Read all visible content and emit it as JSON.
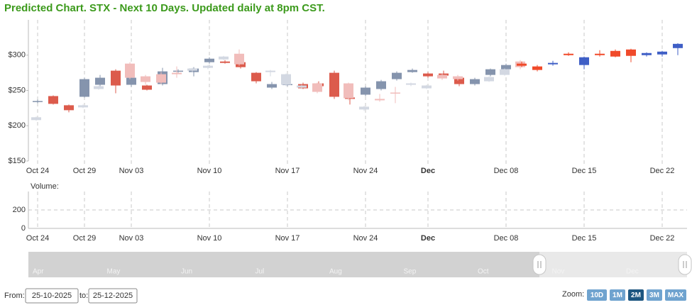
{
  "chart_data": {
    "type": "candlestick",
    "title": "Predicted Chart. STX - Next 10 Days. Updated daily at 8pm CST.",
    "categories": [
      "Oct 24",
      null,
      null,
      "Oct 29",
      null,
      null,
      "Nov 03",
      null,
      null,
      null,
      null,
      "Nov 10",
      null,
      null,
      null,
      null,
      "Nov 17",
      null,
      null,
      null,
      null,
      "Nov 24",
      null,
      null,
      null,
      "Dec",
      null,
      null,
      null,
      null,
      "Dec 08",
      null,
      null,
      null,
      null,
      "Dec 15",
      null,
      null,
      null,
      null,
      "Dec 22",
      null
    ],
    "bold_category": "Dec",
    "ylim": [
      150,
      350
    ],
    "yticks": [
      {
        "value": 150,
        "label": "$150"
      },
      {
        "value": 200,
        "label": "$200"
      },
      {
        "value": 250,
        "label": "$250"
      },
      {
        "value": 300,
        "label": "$300"
      }
    ],
    "grid": true,
    "series": [
      {
        "up_color": "#8594ad",
        "down_color": "#dc5b4c",
        "open": [
          234,
          242,
          229,
          241,
          258,
          278,
          258,
          257,
          259,
          277,
          276,
          290,
          291,
          290,
          275,
          254,
          258,
          259,
          260,
          275,
          240,
          244,
          252,
          266,
          276,
          274,
          274,
          268,
          259,
          272,
          280,
          null,
          null,
          null,
          null,
          null,
          null,
          null,
          null,
          null,
          null,
          null
        ],
        "high": [
          237,
          243,
          230,
          268,
          272,
          280,
          270,
          258,
          282,
          280,
          283,
          297,
          293,
          292,
          276,
          262,
          261,
          261,
          263,
          278,
          241,
          256,
          265,
          277,
          281,
          276,
          278,
          270,
          268,
          281,
          288,
          null,
          null,
          null,
          null,
          null,
          null,
          null,
          null,
          null,
          null,
          null
        ],
        "low": [
          232,
          230,
          219,
          240,
          256,
          246,
          255,
          250,
          257,
          275,
          270,
          288,
          288,
          281,
          260,
          252,
          256,
          252,
          254,
          238,
          230,
          242,
          250,
          264,
          275,
          268,
          268,
          256,
          257,
          270,
          278,
          null,
          null,
          null,
          null,
          null,
          null,
          null,
          null,
          null,
          null,
          null
        ],
        "close": [
          235,
          231,
          222,
          266,
          268,
          257,
          268,
          251,
          277,
          278,
          281,
          295,
          289,
          283,
          263,
          259,
          259,
          253,
          256,
          241,
          238,
          254,
          263,
          275,
          279,
          270,
          271,
          259,
          266,
          280,
          286,
          null,
          null,
          null,
          null,
          null,
          null,
          null,
          null,
          null,
          null,
          null
        ]
      },
      {
        "up_color": "#d3d8e2",
        "down_color": "#f1bdbb",
        "open": [
          208,
          null,
          null,
          226,
          252,
          null,
          288,
          270,
          273,
          275,
          278,
          282,
          294,
          302,
          null,
          276,
          258,
          254,
          260,
          null,
          260,
          223,
          238,
          247,
          258,
          253,
          272,
          270,
          null,
          263,
          272,
          291,
          null,
          null,
          null,
          null,
          null,
          null,
          null,
          null,
          null,
          null
        ],
        "high": [
          213,
          null,
          null,
          230,
          257,
          null,
          290,
          272,
          276,
          284,
          282,
          286,
          299,
          308,
          null,
          279,
          274,
          258,
          261,
          null,
          261,
          228,
          245,
          255,
          261,
          258,
          274,
          272,
          null,
          270,
          281,
          293,
          null,
          null,
          null,
          null,
          null,
          null,
          null,
          null,
          null,
          null
        ],
        "low": [
          207,
          null,
          null,
          225,
          251,
          null,
          266,
          258,
          259,
          268,
          276,
          280,
          293,
          285,
          null,
          270,
          256,
          252,
          246,
          null,
          236,
          221,
          234,
          232,
          256,
          252,
          265,
          264,
          null,
          262,
          271,
          280,
          null,
          null,
          null,
          null,
          null,
          null,
          null,
          null,
          null,
          null
        ],
        "close": [
          212,
          null,
          null,
          229,
          256,
          null,
          268,
          262,
          261,
          273,
          281,
          285,
          298,
          287,
          null,
          278,
          273,
          257,
          248,
          null,
          239,
          227,
          236,
          246,
          260,
          257,
          267,
          266,
          null,
          269,
          280,
          283,
          null,
          null,
          null,
          null,
          null,
          null,
          null,
          null,
          null,
          null
        ]
      },
      {
        "up_color": "#3f5fc6",
        "down_color": "#f04a2a",
        "open": [
          null,
          null,
          null,
          null,
          null,
          null,
          null,
          null,
          null,
          null,
          null,
          null,
          null,
          null,
          null,
          null,
          null,
          null,
          null,
          null,
          null,
          null,
          null,
          null,
          null,
          null,
          null,
          null,
          null,
          null,
          null,
          288,
          284,
          287,
          302,
          286,
          302,
          306,
          308,
          300,
          301,
          310
        ],
        "high": [
          null,
          null,
          null,
          null,
          null,
          null,
          null,
          null,
          null,
          null,
          null,
          null,
          null,
          null,
          null,
          null,
          null,
          null,
          null,
          null,
          null,
          null,
          null,
          null,
          null,
          null,
          null,
          null,
          null,
          null,
          null,
          291,
          286,
          292,
          304,
          298,
          307,
          308,
          309,
          304,
          306,
          317
        ],
        "low": [
          null,
          null,
          null,
          null,
          null,
          null,
          null,
          null,
          null,
          null,
          null,
          null,
          null,
          null,
          null,
          null,
          null,
          null,
          null,
          null,
          null,
          null,
          null,
          null,
          null,
          null,
          null,
          null,
          null,
          null,
          null,
          283,
          277,
          285,
          299,
          280,
          298,
          297,
          290,
          298,
          298,
          300
        ],
        "close": [
          null,
          null,
          null,
          null,
          null,
          null,
          null,
          null,
          null,
          null,
          null,
          null,
          null,
          null,
          null,
          null,
          null,
          null,
          null,
          null,
          null,
          null,
          null,
          null,
          null,
          null,
          null,
          null,
          null,
          null,
          null,
          285,
          279,
          289,
          300,
          297,
          300,
          298,
          299,
          303,
          305,
          316
        ]
      }
    ],
    "volume_panel": {
      "title": "Volume:",
      "ylim": [
        0,
        400
      ],
      "yticks": [
        0,
        200
      ]
    }
  },
  "navigator": {
    "labels": [
      "Apr",
      "May",
      "Jun",
      "Jul",
      "Aug",
      "Sep",
      "Oct",
      "Nov",
      "Dec"
    ]
  },
  "range_selector": {
    "from_label": "From:",
    "from": "25-10-2025",
    "to_label": "to:",
    "to": "25-12-2025",
    "zoom_label": "Zoom:",
    "buttons": [
      "10D",
      "1M",
      "2M",
      "3M",
      "MAX"
    ],
    "selected": 2
  }
}
